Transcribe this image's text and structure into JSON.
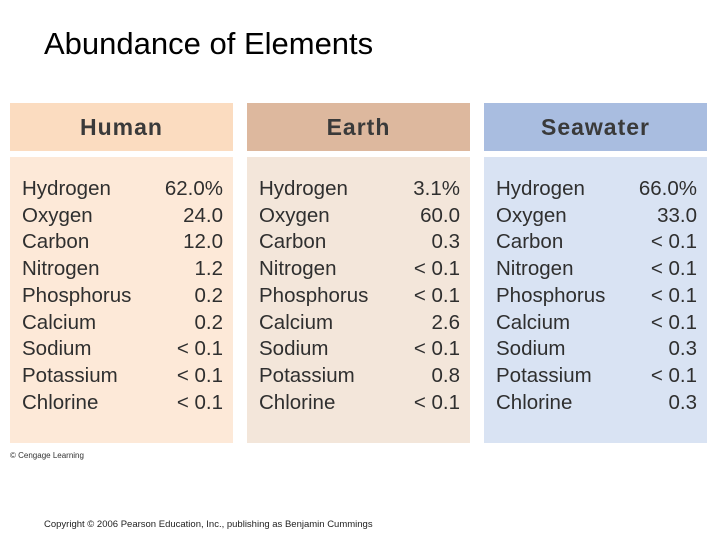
{
  "title": "Abundance of Elements",
  "columns": [
    {
      "header": "Human",
      "rows": [
        {
          "element": "Hydrogen",
          "value": "62.0%"
        },
        {
          "element": "Oxygen",
          "value": "24.0"
        },
        {
          "element": "Carbon",
          "value": "12.0"
        },
        {
          "element": "Nitrogen",
          "value": "1.2"
        },
        {
          "element": "Phosphorus",
          "value": "0.2"
        },
        {
          "element": "Calcium",
          "value": "0.2"
        },
        {
          "element": "Sodium",
          "value": "< 0.1"
        },
        {
          "element": "Potassium",
          "value": "< 0.1"
        },
        {
          "element": "Chlorine",
          "value": "< 0.1"
        }
      ]
    },
    {
      "header": "Earth",
      "rows": [
        {
          "element": "Hydrogen",
          "value": "3.1%"
        },
        {
          "element": "Oxygen",
          "value": "60.0"
        },
        {
          "element": "Carbon",
          "value": "0.3"
        },
        {
          "element": "Nitrogen",
          "value": "< 0.1"
        },
        {
          "element": "Phosphorus",
          "value": "< 0.1"
        },
        {
          "element": "Calcium",
          "value": "2.6"
        },
        {
          "element": "Sodium",
          "value": "< 0.1"
        },
        {
          "element": "Potassium",
          "value": "0.8"
        },
        {
          "element": "Chlorine",
          "value": "< 0.1"
        }
      ]
    },
    {
      "header": "Seawater",
      "rows": [
        {
          "element": "Hydrogen",
          "value": "66.0%"
        },
        {
          "element": "Oxygen",
          "value": "33.0"
        },
        {
          "element": "Carbon",
          "value": "< 0.1"
        },
        {
          "element": "Nitrogen",
          "value": "< 0.1"
        },
        {
          "element": "Phosphorus",
          "value": "< 0.1"
        },
        {
          "element": "Calcium",
          "value": "< 0.1"
        },
        {
          "element": "Sodium",
          "value": "0.3"
        },
        {
          "element": "Potassium",
          "value": "< 0.1"
        },
        {
          "element": "Chlorine",
          "value": "0.3"
        }
      ]
    }
  ],
  "credit": "© Cengage Learning",
  "copyright": "Copyright © 2006 Pearson Education, Inc., publishing as Benjamin Cummings",
  "colors": {
    "human_header": "#fbdcc0",
    "human_body": "#fde9d8",
    "earth_header": "#ddb89e",
    "earth_body": "#f3e6da",
    "seawater_header": "#a9bde0",
    "seawater_body": "#d9e3f3"
  }
}
